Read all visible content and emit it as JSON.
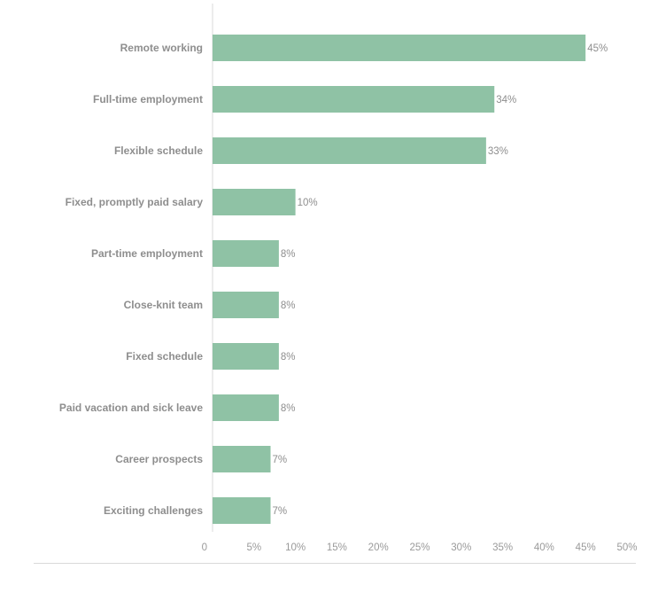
{
  "colors": {
    "bar": "#8fc2a5",
    "axis_line": "#d9d9d9",
    "label_text": "#8e8e8e"
  },
  "chart_data": {
    "type": "bar",
    "orientation": "horizontal",
    "categories": [
      "Remote working",
      "Full-time employment",
      "Flexible schedule",
      "Fixed, promptly paid salary",
      "Part-time employment",
      "Close-knit team",
      "Fixed schedule",
      "Paid vacation and sick leave",
      "Career prospects",
      "Exciting challenges"
    ],
    "values": [
      45,
      34,
      33,
      10,
      8,
      8,
      8,
      8,
      7,
      7
    ],
    "value_labels": [
      "45%",
      "34%",
      "33%",
      "10%",
      "8%",
      "8%",
      "8%",
      "8%",
      "7%",
      "7%"
    ],
    "x_ticks": [
      0,
      5,
      10,
      15,
      20,
      25,
      30,
      35,
      40,
      45,
      50
    ],
    "x_tick_labels": [
      "0",
      "5%",
      "10%",
      "15%",
      "20%",
      "25%",
      "30%",
      "35%",
      "40%",
      "45%",
      "50%"
    ],
    "xlim": [
      0,
      50
    ],
    "title": "",
    "xlabel": "",
    "ylabel": "",
    "grid": false,
    "legend": "none"
  }
}
